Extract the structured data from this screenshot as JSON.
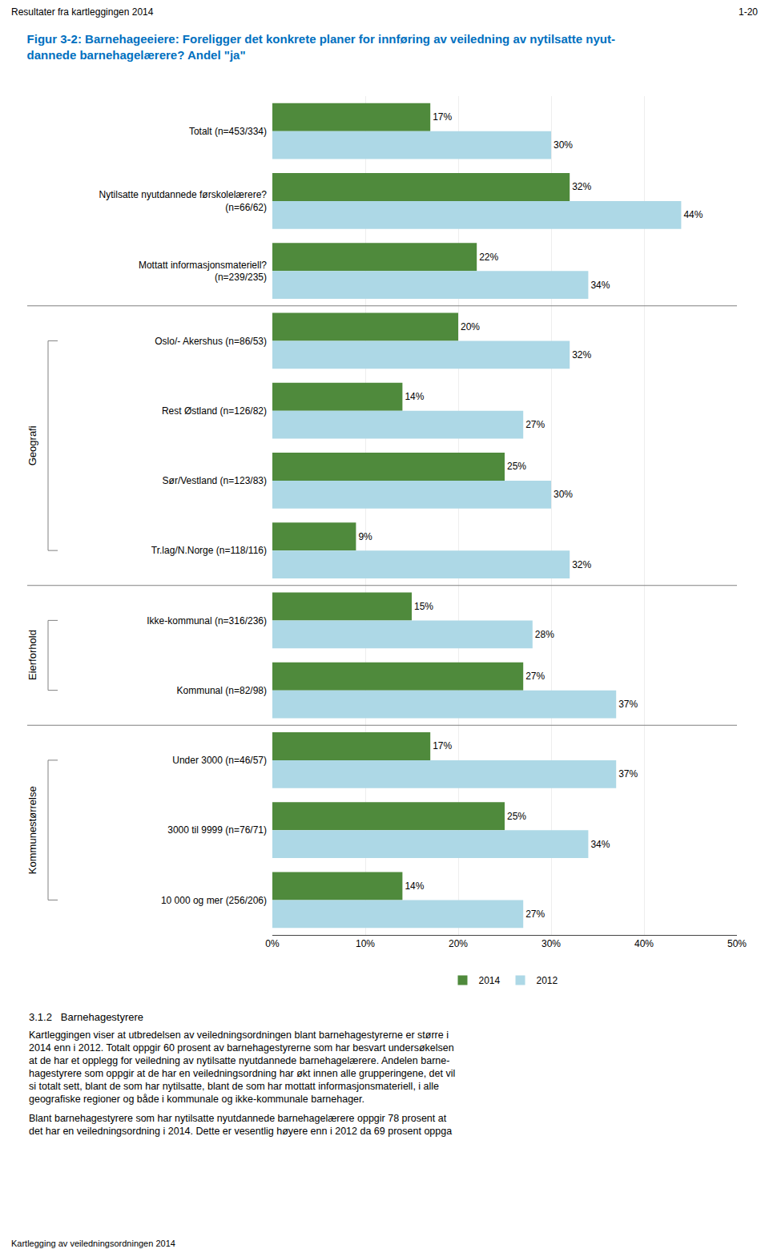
{
  "chart_data": {
    "type": "bar",
    "orientation": "horizontal",
    "title": "Figur 3-2: Barnehageeiere: Foreligger det konkrete planer for innføring av veiledning av nytilsatte nyut-\ndannede barnehagelærere? Andel \"ja\"",
    "header_left": "Resultater fra kartleggingen 2014",
    "header_right": "1-20",
    "footer": "Kartlegging av veiledningsordningen 2014",
    "body_heading": "3.1.2   Barnehagestyrere",
    "body_paragraphs": [
      [
        "Kartleggingen viser at utbredelsen av veiledningsordningen blant barnehagestyrerne er større i",
        "2014 enn i 2012. Totalt oppgir 60 prosent av barnehagestyrerne som har besvart undersøkelsen",
        "at de har et opplegg for veiledning av nytilsatte nyutdannede barnehagelærere. Andelen barne-",
        "hagestyrere som oppgir at de har en veiledningsordning har økt innen alle grupperingene, det vil",
        "si totalt sett, blant de som har nytilsatte, blant de som har mottatt informasjonsmateriell, i alle",
        "geografiske regioner og både i kommunale og ikke-kommunale barnehager."
      ],
      [
        "Blant barnehagestyrere som har nytilsatte nyutdannede barnehagelærere oppgir 78 prosent at",
        "det har en veiledningsordning i 2014. Dette er vesentlig høyere enn i 2012 da 69 prosent oppga"
      ]
    ],
    "categories": [
      "Totalt (n=453/334)",
      "Nytilsatte nyutdannede førskolelærere?\n(n=66/62)",
      "Mottatt informasjonsmateriell?\n(n=239/235)",
      "Oslo/- Akershus (n=86/53)",
      "Rest Østland (n=126/82)",
      "Sør/Vestland (n=123/83)",
      "Tr.lag/N.Norge (n=118/116)",
      "Ikke-kommunal (n=316/236)",
      "Kommunal (n=82/98)",
      "Under 3000 (n=46/57)",
      "3000 til 9999 (n=76/71)",
      "10 000 og mer (256/206)"
    ],
    "series": [
      {
        "name": "2014",
        "color": "#4f8a3c",
        "values": [
          17,
          32,
          22,
          20,
          14,
          25,
          9,
          15,
          27,
          17,
          25,
          14
        ],
        "value_labels": [
          "17%",
          "32%",
          "22%",
          "20%",
          "14%",
          "25%",
          "9%",
          "15%",
          "27%",
          "17%",
          "25%",
          "14%"
        ]
      },
      {
        "name": "2012",
        "color": "#add8e6",
        "values": [
          30,
          44,
          34,
          32,
          27,
          30,
          32,
          28,
          37,
          37,
          34,
          27
        ],
        "value_labels": [
          "30%",
          "44%",
          "34%",
          "32%",
          "27%",
          "30%",
          "32%",
          "28%",
          "37%",
          "37%",
          "34%",
          "27%"
        ]
      }
    ],
    "groups": [
      {
        "label": "Geografi",
        "first": "Oslo/- Akershus (n=86/53)",
        "last": "Tr.lag/N.Norge (n=118/116)"
      },
      {
        "label": "Eierforhold",
        "first": "Ikke-kommunal (n=316/236)",
        "last": "Kommunal (n=82/98)"
      },
      {
        "label": "Kommunestørrelse",
        "first": "Under 3000 (n=46/57)",
        "last": "10 000 og mer (256/206)"
      }
    ],
    "xlim": [
      0,
      50
    ],
    "xticks": [
      {
        "value": 0,
        "label": "0%"
      },
      {
        "value": 10,
        "label": "10%"
      },
      {
        "value": 20,
        "label": "20%"
      },
      {
        "value": 30,
        "label": "30%"
      },
      {
        "value": 40,
        "label": "40%"
      },
      {
        "value": 50,
        "label": "50%"
      }
    ],
    "grid": true,
    "data_labels": true,
    "legend": "bottom",
    "title_color": "#0070c0"
  }
}
